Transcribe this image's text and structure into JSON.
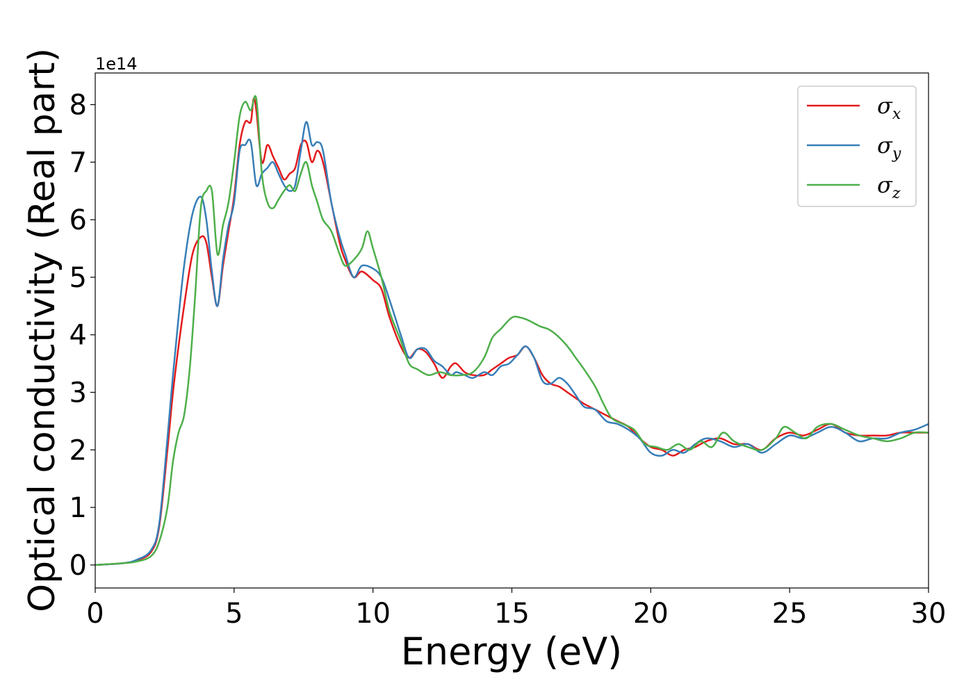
{
  "chart_data": {
    "type": "line",
    "xlabel": "Energy (eV)",
    "ylabel": "Optical conductivity (Real part)",
    "y_offset_label": "1e14",
    "xlim": [
      0,
      30
    ],
    "ylim": [
      -0.4,
      8.55
    ],
    "x_ticks": [
      0,
      5,
      10,
      15,
      20,
      25,
      30
    ],
    "y_ticks": [
      0,
      1,
      2,
      3,
      4,
      5,
      6,
      7,
      8
    ],
    "grid": false,
    "legend_position": "top-right",
    "series": [
      {
        "name": "σ_x",
        "legend_symbol": "σ",
        "legend_sub": "x",
        "color": "#e41a1c",
        "x": [
          0,
          1,
          1.5,
          2,
          2.3,
          2.6,
          2.8,
          3.0,
          3.2,
          3.5,
          3.8,
          4.0,
          4.2,
          4.4,
          4.6,
          4.8,
          5.0,
          5.2,
          5.4,
          5.6,
          5.7,
          5.8,
          6.0,
          6.2,
          6.4,
          6.6,
          6.8,
          7.0,
          7.2,
          7.4,
          7.6,
          7.8,
          8.0,
          8.2,
          8.5,
          8.8,
          9.0,
          9.3,
          9.6,
          10.0,
          10.3,
          10.6,
          11.0,
          11.3,
          11.6,
          11.9,
          12.2,
          12.5,
          12.8,
          13.0,
          13.3,
          13.6,
          14.0,
          14.3,
          14.6,
          14.9,
          15.2,
          15.5,
          15.8,
          16.1,
          16.4,
          16.7,
          17.0,
          17.3,
          17.6,
          18.0,
          18.4,
          18.8,
          19.2,
          19.6,
          20.0,
          20.4,
          20.8,
          21.2,
          21.6,
          22.0,
          22.5,
          23.0,
          23.5,
          24.0,
          24.5,
          25.0,
          25.5,
          26.0,
          26.5,
          27.0,
          27.5,
          28.0,
          28.5,
          29.0,
          29.5,
          30.0
        ],
        "y": [
          0,
          0.03,
          0.08,
          0.22,
          0.65,
          2.0,
          3.0,
          3.8,
          4.5,
          5.4,
          5.7,
          5.6,
          5.0,
          4.5,
          5.2,
          5.8,
          6.4,
          7.3,
          7.7,
          7.7,
          8.1,
          7.9,
          7.0,
          7.3,
          7.1,
          6.9,
          6.7,
          6.8,
          6.9,
          7.3,
          7.35,
          7.0,
          7.2,
          7.0,
          6.3,
          5.6,
          5.3,
          5.0,
          5.1,
          4.95,
          4.8,
          4.3,
          3.8,
          3.6,
          3.75,
          3.7,
          3.5,
          3.25,
          3.45,
          3.5,
          3.35,
          3.3,
          3.3,
          3.4,
          3.5,
          3.6,
          3.65,
          3.8,
          3.6,
          3.3,
          3.15,
          3.1,
          3.0,
          2.9,
          2.8,
          2.7,
          2.6,
          2.5,
          2.4,
          2.2,
          2.05,
          2.0,
          1.9,
          2.0,
          2.05,
          2.15,
          2.2,
          2.1,
          2.1,
          2.0,
          2.2,
          2.3,
          2.25,
          2.35,
          2.45,
          2.3,
          2.25,
          2.25,
          2.25,
          2.3,
          2.3,
          2.3
        ]
      },
      {
        "name": "σ_y",
        "legend_symbol": "σ",
        "legend_sub": "y",
        "color": "#377eb8",
        "x": [
          0,
          1,
          1.5,
          2,
          2.3,
          2.6,
          2.8,
          3.0,
          3.2,
          3.5,
          3.8,
          4.0,
          4.2,
          4.4,
          4.6,
          4.8,
          5.0,
          5.2,
          5.4,
          5.6,
          5.8,
          6.0,
          6.2,
          6.4,
          6.6,
          6.8,
          7.0,
          7.2,
          7.4,
          7.6,
          7.8,
          8.0,
          8.2,
          8.5,
          8.8,
          9.0,
          9.3,
          9.6,
          10.0,
          10.3,
          10.6,
          11.0,
          11.3,
          11.6,
          11.9,
          12.2,
          12.5,
          12.8,
          13.0,
          13.3,
          13.6,
          14.0,
          14.3,
          14.6,
          14.9,
          15.2,
          15.5,
          15.8,
          16.1,
          16.4,
          16.7,
          17.0,
          17.3,
          17.6,
          18.0,
          18.4,
          18.8,
          19.2,
          19.6,
          20.0,
          20.4,
          20.8,
          21.2,
          21.6,
          22.0,
          22.5,
          23.0,
          23.5,
          24.0,
          24.5,
          25.0,
          25.5,
          26.0,
          26.5,
          27.0,
          27.5,
          28.0,
          28.5,
          29.0,
          29.5,
          30.0
        ],
        "y": [
          0,
          0.03,
          0.09,
          0.25,
          0.7,
          2.2,
          3.3,
          4.3,
          5.2,
          6.1,
          6.4,
          6.0,
          5.1,
          4.5,
          5.3,
          5.9,
          6.3,
          7.2,
          7.3,
          7.35,
          6.6,
          6.8,
          6.9,
          7.0,
          6.8,
          6.6,
          6.5,
          6.6,
          7.2,
          7.7,
          7.3,
          7.35,
          7.2,
          6.3,
          5.7,
          5.4,
          5.0,
          5.2,
          5.15,
          5.0,
          4.6,
          4.0,
          3.6,
          3.75,
          3.75,
          3.55,
          3.45,
          3.3,
          3.35,
          3.3,
          3.25,
          3.35,
          3.3,
          3.45,
          3.5,
          3.65,
          3.8,
          3.6,
          3.2,
          3.15,
          3.25,
          3.15,
          2.95,
          2.75,
          2.7,
          2.5,
          2.45,
          2.35,
          2.2,
          1.95,
          1.9,
          2.0,
          1.95,
          2.1,
          2.2,
          2.15,
          2.05,
          2.1,
          1.95,
          2.1,
          2.25,
          2.2,
          2.3,
          2.4,
          2.3,
          2.15,
          2.2,
          2.2,
          2.3,
          2.35,
          2.45
        ]
      },
      {
        "name": "σ_z",
        "legend_symbol": "σ",
        "legend_sub": "z",
        "color": "#4daf4a",
        "x": [
          0,
          1,
          1.5,
          2,
          2.3,
          2.6,
          2.8,
          3.0,
          3.2,
          3.4,
          3.6,
          3.8,
          4.0,
          4.2,
          4.4,
          4.6,
          4.8,
          5.0,
          5.2,
          5.4,
          5.6,
          5.8,
          6.0,
          6.2,
          6.4,
          6.6,
          6.8,
          7.0,
          7.2,
          7.4,
          7.6,
          7.8,
          8.0,
          8.2,
          8.5,
          8.8,
          9.0,
          9.3,
          9.6,
          9.8,
          10.0,
          10.3,
          10.6,
          11.0,
          11.3,
          11.6,
          12.0,
          12.4,
          12.8,
          13.2,
          13.6,
          14.0,
          14.3,
          14.6,
          15.0,
          15.3,
          15.6,
          16.0,
          16.3,
          16.6,
          17.0,
          17.3,
          17.6,
          18.0,
          18.3,
          18.6,
          19.0,
          19.4,
          19.8,
          20.2,
          20.6,
          21.0,
          21.4,
          21.8,
          22.2,
          22.6,
          23.0,
          23.5,
          24.0,
          24.5,
          24.8,
          25.2,
          25.6,
          26.0,
          26.5,
          27.0,
          27.5,
          28.0,
          28.5,
          29.0,
          29.5,
          30.0
        ],
        "y": [
          0,
          0.03,
          0.06,
          0.15,
          0.4,
          1.0,
          1.8,
          2.3,
          2.6,
          3.4,
          4.7,
          6.2,
          6.5,
          6.5,
          5.4,
          5.9,
          6.3,
          7.0,
          7.8,
          8.05,
          7.9,
          8.1,
          6.8,
          6.3,
          6.2,
          6.35,
          6.5,
          6.6,
          6.5,
          6.8,
          7.0,
          6.6,
          6.3,
          6.0,
          5.8,
          5.4,
          5.2,
          5.3,
          5.5,
          5.8,
          5.5,
          5.0,
          4.4,
          3.9,
          3.5,
          3.4,
          3.3,
          3.35,
          3.3,
          3.3,
          3.35,
          3.6,
          3.95,
          4.1,
          4.3,
          4.3,
          4.25,
          4.15,
          4.1,
          4.0,
          3.8,
          3.6,
          3.4,
          3.1,
          2.8,
          2.55,
          2.45,
          2.35,
          2.1,
          2.05,
          2.0,
          2.1,
          2.0,
          2.15,
          2.05,
          2.3,
          2.15,
          2.05,
          2.0,
          2.2,
          2.4,
          2.3,
          2.2,
          2.4,
          2.45,
          2.35,
          2.25,
          2.2,
          2.15,
          2.2,
          2.3,
          2.3
        ]
      }
    ]
  }
}
